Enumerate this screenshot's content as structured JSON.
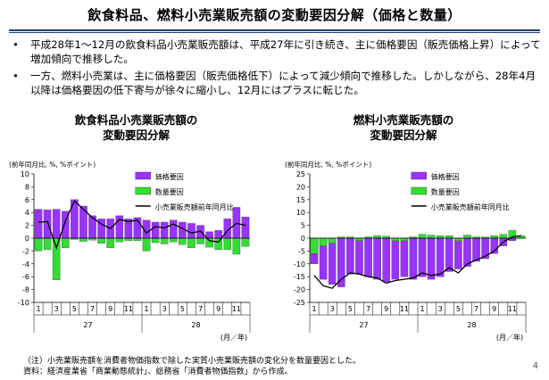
{
  "title": "飲食料品、燃料小売業販売額の変動要因分解（価格と数量）",
  "bullets": [
    {
      "marker": "•",
      "text": "平成28年1〜12月の飲食料品小売業販売額は、平成27年に引き続き、主に価格要因（販売価格上昇）によって増加傾向で推移した。"
    },
    {
      "marker": "•",
      "text": "一方、燃料小売業は、主に価格要因（販売価格低下）によって減少傾向で推移した。しかしながら、28年4月以降は価格要因の低下寄与が徐々に縮小し、12月にはプラスに転じた。"
    }
  ],
  "footer": {
    "note": "（注）小売業販売額を消費者物価指数で除した実質小売業販売額の変化分を数量要因とした。",
    "source": "資料：経済産業省「商業動態統計」、総務省「消費者物価指数」から作成。"
  },
  "page_number": "4",
  "colors": {
    "price": "#9933ff",
    "quantity": "#33dd33",
    "line": "#000000"
  },
  "chart_data": [
    {
      "type": "bar",
      "title_lines": [
        "飲食料品小売業販売額の",
        "変動要因分解"
      ],
      "unit_label": "(前年同月比, %, %ポイント)",
      "x_month_labels": [
        "1",
        "",
        "3",
        "",
        "5",
        "",
        "7",
        "",
        "9",
        "",
        "11",
        "",
        "1",
        "",
        "3",
        "",
        "5",
        "",
        "7",
        "",
        "9",
        "",
        "11",
        ""
      ],
      "year_labels": [
        {
          "label": "27",
          "start": 0,
          "end": 11
        },
        {
          "label": "28",
          "start": 12,
          "end": 23
        }
      ],
      "x_unit": "(月／年)",
      "ylim": [
        -10,
        10
      ],
      "yticks": [
        10,
        8,
        6,
        4,
        2,
        0,
        -2,
        -4,
        -6,
        -8,
        -10
      ],
      "legend": [
        "価格要因",
        "数量要因",
        "小売業販売額前年同月比"
      ],
      "series": [
        {
          "name": "価格要因",
          "kind": "bar",
          "values": [
            4.5,
            4.4,
            4.5,
            4.2,
            6.0,
            5.0,
            3.5,
            3.0,
            3.0,
            3.5,
            3.0,
            3.2,
            2.8,
            2.5,
            2.5,
            2.8,
            2.5,
            2.3,
            2.0,
            1.0,
            1.2,
            3.0,
            4.8,
            3.3
          ]
        },
        {
          "name": "数量要因",
          "kind": "bar",
          "values": [
            -2.0,
            -1.8,
            -6.5,
            -1.5,
            -0.2,
            -0.5,
            -0.3,
            -0.8,
            -1.5,
            -0.6,
            -0.4,
            -0.4,
            -2.0,
            -0.7,
            -0.9,
            -0.6,
            -1.0,
            -1.5,
            -0.9,
            -1.4,
            -1.8,
            -1.8,
            -2.5,
            -1.3
          ]
        },
        {
          "name": "小売業販売額前年同月比",
          "kind": "line",
          "values": [
            2.5,
            2.6,
            -1.5,
            2.7,
            5.8,
            4.5,
            3.2,
            2.2,
            1.5,
            2.9,
            2.6,
            2.8,
            0.8,
            1.8,
            1.6,
            2.2,
            1.5,
            0.8,
            1.1,
            -0.4,
            -0.6,
            1.2,
            2.3,
            2.0
          ]
        }
      ]
    },
    {
      "type": "bar",
      "title_lines": [
        "燃料小売業販売額の",
        "変動要因分解"
      ],
      "unit_label": "(前年同月比, %, %ポイント)",
      "x_month_labels": [
        "1",
        "",
        "3",
        "",
        "5",
        "",
        "7",
        "",
        "9",
        "",
        "11",
        "",
        "1",
        "",
        "3",
        "",
        "5",
        "",
        "7",
        "",
        "9",
        "",
        "11",
        ""
      ],
      "year_labels": [
        {
          "label": "27",
          "start": 0,
          "end": 11
        },
        {
          "label": "28",
          "start": 12,
          "end": 23
        }
      ],
      "x_unit": "(月／年)",
      "ylim": [
        -25,
        25
      ],
      "yticks": [
        25,
        20,
        15,
        10,
        5,
        0,
        -5,
        -10,
        -15,
        -20,
        -25
      ],
      "legend": [
        "価格要因",
        "数量要因",
        "小売業販売額前年同月比"
      ],
      "series": [
        {
          "name": "価格要因",
          "kind": "bar",
          "values": [
            -10,
            -16,
            -18,
            -19,
            -14,
            -14,
            -15,
            -16,
            -17,
            -16,
            -15,
            -16,
            -15,
            -16,
            -15,
            -13,
            -12,
            -11,
            -9,
            -8,
            -6,
            -3,
            -1,
            0.5
          ]
        },
        {
          "name": "数量要因",
          "kind": "bar",
          "values": [
            -6,
            -3,
            -2,
            0.5,
            0.5,
            -1,
            0.5,
            1,
            0.8,
            -1,
            -1,
            0.5,
            1.5,
            1.2,
            1,
            1,
            -1,
            1.2,
            0.5,
            0.5,
            1,
            1.5,
            3,
            1
          ]
        },
        {
          "name": "小売業販売額前年同月比",
          "kind": "line",
          "values": [
            -14.5,
            -18.5,
            -19.5,
            -16,
            -13.5,
            -14,
            -15,
            -15.5,
            -17.5,
            -16.5,
            -16,
            -15.5,
            -13.5,
            -14.5,
            -14,
            -11.5,
            -13.5,
            -10,
            -8.5,
            -7,
            -5,
            -1.5,
            0.5,
            1
          ]
        }
      ]
    }
  ]
}
